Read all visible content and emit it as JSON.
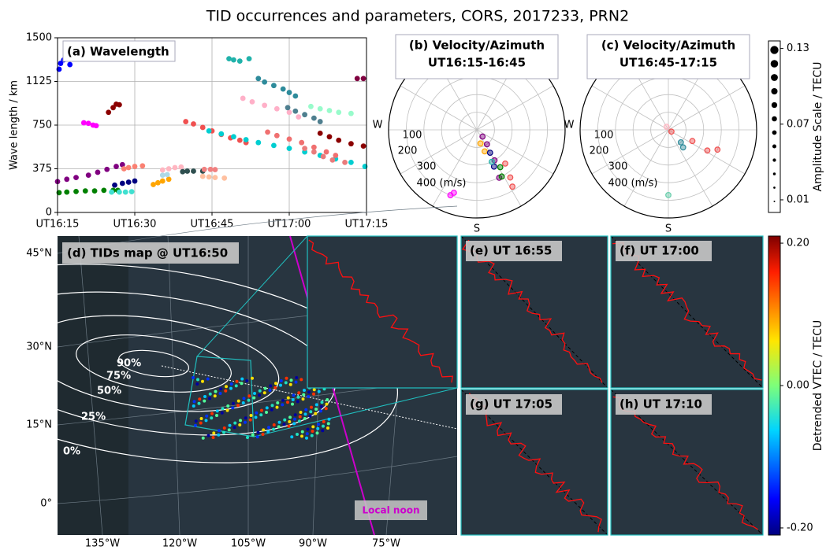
{
  "title": "TID occurrences and parameters, CORS, 2017233, PRN2",
  "chart_data": [
    {
      "type": "scatter",
      "title": "(a) Wavelength",
      "y_label": "Wave length / km",
      "xlim": [
        16.25,
        17.25
      ],
      "xticks": [
        {
          "value": 16.25,
          "label": "UT16:15"
        },
        {
          "value": 16.5,
          "label": "UT16:30"
        },
        {
          "value": 16.75,
          "label": "UT16:45"
        },
        {
          "value": 17.0,
          "label": "UT17:00"
        },
        {
          "value": 17.25,
          "label": "UT17:15"
        }
      ],
      "ylim": [
        0,
        1500
      ],
      "yticks": [
        0,
        375,
        750,
        1125,
        1500
      ],
      "grid": true,
      "series": [
        {
          "color": "#0000ff",
          "x": [
            16.255,
            16.26,
            16.27,
            16.29
          ],
          "values": [
            1230,
            1280,
            1310,
            1270
          ]
        },
        {
          "color": "#ff00ff",
          "x": [
            16.335,
            16.35,
            16.365,
            16.375
          ],
          "values": [
            770,
            765,
            750,
            745
          ]
        },
        {
          "color": "#8b0000",
          "x": [
            16.415,
            16.43,
            16.44,
            16.45
          ],
          "values": [
            860,
            900,
            930,
            925
          ]
        },
        {
          "color": "#800080",
          "x": [
            16.25,
            16.28,
            16.31,
            16.35,
            16.38,
            16.41,
            16.44,
            16.46
          ],
          "values": [
            265,
            285,
            300,
            320,
            345,
            370,
            395,
            410
          ]
        },
        {
          "color": "#008000",
          "x": [
            16.255,
            16.28,
            16.31,
            16.34,
            16.37,
            16.4,
            16.43,
            16.445
          ],
          "values": [
            170,
            175,
            180,
            185,
            185,
            190,
            190,
            190
          ]
        },
        {
          "color": "#000080",
          "x": [
            16.435,
            16.46,
            16.48,
            16.5
          ],
          "values": [
            235,
            250,
            260,
            270
          ]
        },
        {
          "color": "#40e0d0",
          "x": [
            16.425,
            16.45,
            16.47,
            16.49
          ],
          "values": [
            175,
            175,
            175,
            178
          ]
        },
        {
          "color": "#fa8072",
          "x": [
            16.465,
            16.48,
            16.5,
            16.525
          ],
          "values": [
            375,
            385,
            395,
            400
          ]
        },
        {
          "color": "#ffa500",
          "x": [
            16.56,
            16.575,
            16.59,
            16.61
          ],
          "values": [
            240,
            255,
            270,
            285
          ]
        },
        {
          "color": "#add8e6",
          "x": [
            16.59,
            16.605
          ],
          "values": [
            320,
            325
          ]
        },
        {
          "color": "#ffb6c1",
          "x": [
            16.59,
            16.61,
            16.63,
            16.65
          ],
          "values": [
            365,
            375,
            385,
            390
          ]
        },
        {
          "color": "#2f4f4f",
          "x": [
            16.655,
            16.67,
            16.69,
            16.72
          ],
          "values": [
            350,
            355,
            355,
            355
          ]
        },
        {
          "color": "#ffc0a0",
          "x": [
            16.72,
            16.74,
            16.76,
            16.79
          ],
          "values": [
            310,
            305,
            300,
            295
          ]
        },
        {
          "color": "#f08080",
          "x": [
            16.725,
            16.745,
            16.76
          ],
          "values": [
            370,
            370,
            368
          ]
        },
        {
          "color": "#f05050",
          "x": [
            16.665,
            16.69,
            16.72,
            16.75,
            16.78,
            16.81,
            16.84,
            16.86
          ],
          "values": [
            780,
            760,
            730,
            700,
            670,
            640,
            620,
            600
          ]
        },
        {
          "color": "#00ced1",
          "x": [
            16.74,
            16.78,
            16.82,
            16.86,
            16.9,
            16.95,
            17.0,
            17.05,
            17.1,
            17.15,
            17.2,
            17.245
          ],
          "values": [
            700,
            675,
            650,
            625,
            600,
            575,
            550,
            520,
            490,
            460,
            430,
            395
          ]
        },
        {
          "color": "#20b2aa",
          "x": [
            16.805,
            16.82,
            16.84,
            16.87
          ],
          "values": [
            1320,
            1310,
            1300,
            1320
          ]
        },
        {
          "color": "#2e8b9b",
          "x": [
            16.9,
            16.92,
            16.95,
            16.98,
            17.0,
            17.02
          ],
          "values": [
            1150,
            1120,
            1090,
            1060,
            1030,
            1000
          ]
        },
        {
          "color": "#ffb0c8",
          "x": [
            16.85,
            16.88,
            16.92,
            16.96,
            17.0,
            17.03
          ],
          "values": [
            980,
            950,
            920,
            890,
            860,
            820
          ]
        },
        {
          "color": "#4f7f8f",
          "x": [
            16.995,
            17.02,
            17.05,
            17.08,
            17.1
          ],
          "values": [
            900,
            870,
            840,
            810,
            780
          ]
        },
        {
          "color": "#98fbcb",
          "x": [
            17.07,
            17.1,
            17.13,
            17.16,
            17.2
          ],
          "values": [
            910,
            890,
            875,
            860,
            850
          ]
        },
        {
          "color": "#8b0000",
          "x": [
            17.1,
            17.13,
            17.16,
            17.2,
            17.24
          ],
          "values": [
            680,
            650,
            620,
            590,
            570
          ]
        },
        {
          "color": "#f07070",
          "x": [
            16.93,
            16.96,
            17.0,
            17.04,
            17.08,
            17.12,
            17.15
          ],
          "values": [
            690,
            660,
            630,
            600,
            560,
            520,
            490
          ]
        },
        {
          "color": "#e97c7c",
          "x": [
            17.05,
            17.08,
            17.11,
            17.14,
            17.18
          ],
          "values": [
            550,
            520,
            480,
            450,
            430
          ]
        },
        {
          "color": "#800040",
          "x": [
            17.22,
            17.24
          ],
          "values": [
            1150,
            1150
          ]
        }
      ]
    },
    {
      "type": "polar",
      "title": "(b) Velocity/Azimuth",
      "subtitle": "UT16:15-16:45",
      "rlim": [
        0,
        500
      ],
      "rticks": [
        100,
        200,
        300,
        {
          "value": 400,
          "label": "400 (m/s)"
        }
      ],
      "direction_labels": [
        "W",
        "S"
      ],
      "series": [
        {
          "color": "#800080",
          "azimuth": [
            140,
            145,
            150,
            155
          ],
          "values": [
            50,
            100,
            200,
            300
          ]
        },
        {
          "color": "#ffa500",
          "azimuth": [
            165,
            160
          ],
          "values": [
            80,
            130
          ]
        },
        {
          "color": "#000080",
          "azimuth": [
            150,
            155
          ],
          "values": [
            150,
            230
          ]
        },
        {
          "color": "#008000",
          "azimuth": [
            148,
            152
          ],
          "values": [
            250,
            300
          ]
        },
        {
          "color": "#f05050",
          "azimuth": [
            140,
            145,
            148
          ],
          "values": [
            250,
            330,
            380
          ]
        },
        {
          "color": "#20b2aa",
          "azimuth": [
            155
          ],
          "values": [
            200
          ]
        },
        {
          "color": "#ff00ff",
          "azimuth": [
            200,
            202
          ],
          "values": [
            380,
            400
          ]
        }
      ]
    },
    {
      "type": "polar",
      "title": "(c) Velocity/Azimuth",
      "subtitle": "UT16:45-17:15",
      "rlim": [
        0,
        500
      ],
      "rticks": [
        100,
        200,
        300,
        {
          "value": 400,
          "label": "400 (m/s)"
        }
      ],
      "direction_labels": [
        "W",
        "S"
      ],
      "series": [
        {
          "color": "#f05050",
          "azimuth": [
            120,
            115,
            118,
            112
          ],
          "values": [
            20,
            150,
            250,
            300
          ]
        },
        {
          "color": "#2e8b9b",
          "azimuth": [
            135,
            140
          ],
          "values": [
            100,
            130
          ]
        },
        {
          "color": "#66cdaa",
          "azimuth": [
            180
          ],
          "values": [
            370
          ]
        },
        {
          "color": "#ffb6c1",
          "azimuth": [
            330
          ],
          "values": [
            20
          ]
        }
      ]
    },
    {
      "type": "size_scale",
      "label": "Amplitude Scale / TECU",
      "ylim": [
        0,
        0.136
      ],
      "yticks": [
        0.01,
        0.07,
        0.13
      ]
    },
    {
      "type": "map",
      "title": "(d) TIDs map @ UT16:50",
      "lat_labels": [
        "45°N",
        "30°N",
        "15°N",
        "0°"
      ],
      "lon_labels": [
        "135°W",
        "120°W",
        "105°W",
        "90°W",
        "75°W"
      ],
      "contour_labels": [
        "90%",
        "75%",
        "50%",
        "25%",
        "0%"
      ],
      "annotation": "Local noon"
    },
    {
      "type": "map",
      "title": "(e) UT 16:55"
    },
    {
      "type": "map",
      "title": "(f) UT 17:00"
    },
    {
      "type": "map",
      "title": "(g) UT 17:05"
    },
    {
      "type": "map",
      "title": "(h) UT 17:10"
    },
    {
      "type": "colorbar",
      "label": "Detrended VTEC / TECU",
      "ylim": [
        -0.21,
        0.21
      ],
      "yticks": [
        {
          "value": 0.2,
          "label": "0.20"
        },
        {
          "value": 0,
          "label": "0.00"
        },
        {
          "value": -0.2,
          "label": "-0.20"
        }
      ]
    }
  ]
}
